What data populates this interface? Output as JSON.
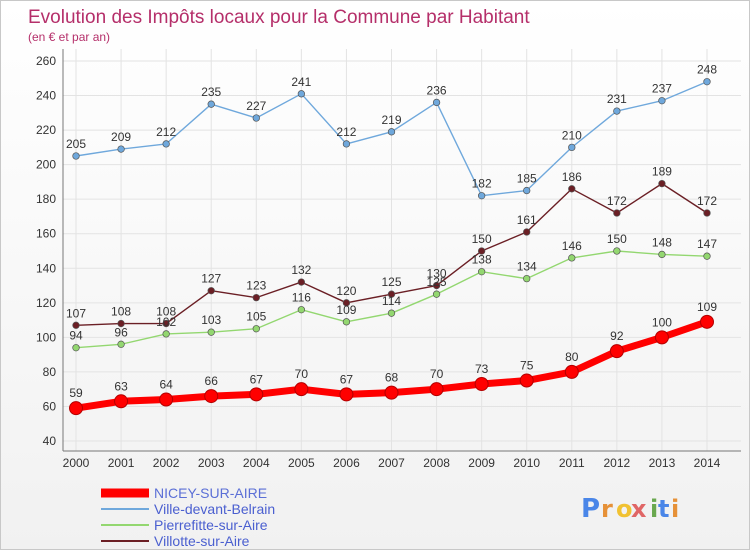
{
  "chart_data": {
    "type": "line",
    "title": "Evolution des Impôts locaux pour la Commune par Habitant",
    "subtitle": "(en € et par an)",
    "x": [
      "2000",
      "2001",
      "2002",
      "2003",
      "2004",
      "2005",
      "2006",
      "2007",
      "2008",
      "2009",
      "2010",
      "2011",
      "2012",
      "2013",
      "2014"
    ],
    "ylim": [
      40,
      260
    ],
    "yticks": [
      40,
      60,
      80,
      100,
      120,
      140,
      160,
      180,
      200,
      220,
      240,
      260
    ],
    "grid": true,
    "legend_position": "bottom-left",
    "series": [
      {
        "name": "NICEY-SUR-AIRE",
        "color": "#ff0000",
        "values": [
          59,
          63,
          64,
          66,
          67,
          70,
          67,
          68,
          70,
          73,
          75,
          80,
          92,
          100,
          109
        ]
      },
      {
        "name": "Ville-devant-Belrain",
        "color": "#6fa8dc",
        "values": [
          205,
          209,
          212,
          235,
          227,
          241,
          212,
          219,
          236,
          182,
          185,
          210,
          231,
          237,
          248
        ]
      },
      {
        "name": "Pierrefitte-sur-Aire",
        "color": "#93d770",
        "values": [
          94,
          96,
          102,
          103,
          105,
          116,
          109,
          114,
          125,
          138,
          134,
          146,
          150,
          148,
          147
        ]
      },
      {
        "name": "Villotte-sur-Aire",
        "color": "#6b1f25",
        "values": [
          107,
          108,
          108,
          127,
          123,
          132,
          120,
          125,
          130,
          150,
          161,
          186,
          172,
          189,
          172
        ]
      }
    ]
  },
  "brand": {
    "logo_text": "Proxiti",
    "letters": [
      "P",
      "r",
      "o",
      "x",
      "i",
      "t",
      "i"
    ],
    "letter_colors": [
      "#4a86e8",
      "#e69138",
      "#f1c232",
      "#e06666",
      "#6aa84f",
      "#4a86e8",
      "#e69138"
    ]
  }
}
